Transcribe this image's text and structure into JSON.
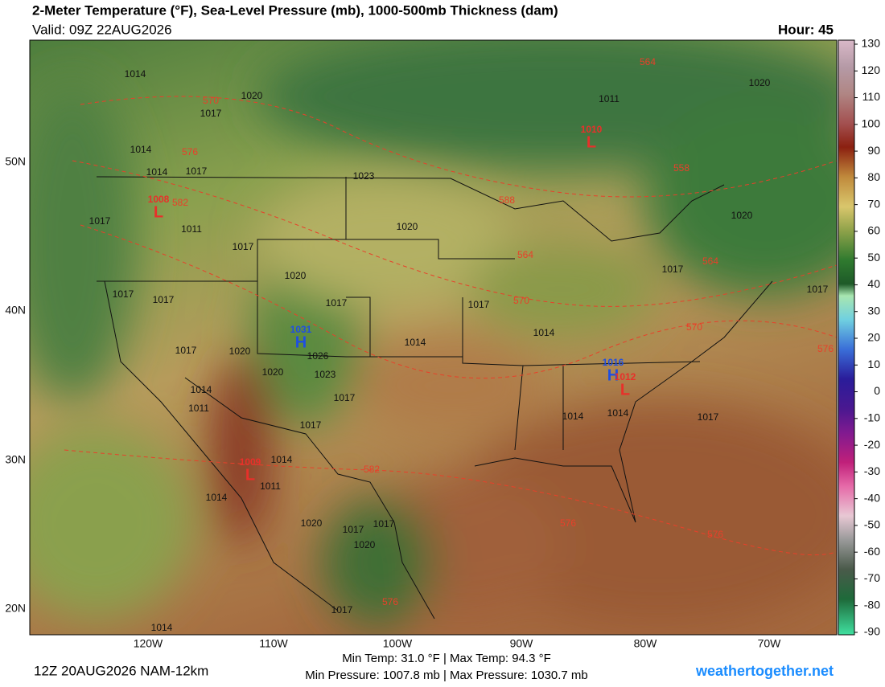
{
  "header": {
    "title": "2-Meter Temperature (°F), Sea-Level Pressure (mb), 1000-500mb Thickness (dam)",
    "valid": "Valid: 09Z 22AUG2026",
    "hour": "Hour: 45"
  },
  "colorbar": {
    "ticks": [
      130,
      120,
      110,
      100,
      90,
      80,
      70,
      60,
      50,
      40,
      30,
      20,
      10,
      0,
      -10,
      -20,
      -30,
      -40,
      -50,
      -60,
      -70,
      -80,
      -90
    ]
  },
  "axes": {
    "lat_labels": [
      "50N",
      "40N",
      "30N",
      "20N"
    ],
    "lon_labels": [
      "120W",
      "110W",
      "100W",
      "90W",
      "80W",
      "70W"
    ]
  },
  "map_labels": {
    "isobars": [
      1014,
      1020,
      1017,
      1014,
      1014,
      1017,
      1023,
      1017,
      1011,
      1017,
      1020,
      1020,
      1017,
      1017,
      1017,
      1017,
      1014,
      1014,
      1017,
      1020,
      1026,
      1020,
      1023,
      1017,
      1014,
      1011,
      1017,
      1014,
      1014,
      1017,
      1014,
      1011,
      1014,
      1020,
      1017,
      1017,
      1020,
      1017,
      1014,
      1011,
      1020,
      1020,
      1017,
      1017
    ],
    "thickness": [
      570,
      576,
      582,
      588,
      564,
      570,
      564,
      558,
      564,
      576,
      570,
      582,
      576,
      576,
      576
    ],
    "centers": [
      {
        "symbol": "L",
        "pressure": 1010
      },
      {
        "symbol": "L",
        "pressure": 1008
      },
      {
        "symbol": "H",
        "pressure": 1031
      },
      {
        "symbol": "H",
        "pressure": 1016
      },
      {
        "symbol": "L",
        "pressure": 1012
      },
      {
        "symbol": "L",
        "pressure": 1009
      }
    ]
  },
  "footer": {
    "run": "12Z 20AUG2026 NAM-12km",
    "temps": "Min Temp:  31.0 °F | Max Temp:  94.3 °F",
    "pressures": "Min Pressure: 1007.8 mb | Max Pressure: 1030.7 mb",
    "site": "weathertogether.net"
  }
}
